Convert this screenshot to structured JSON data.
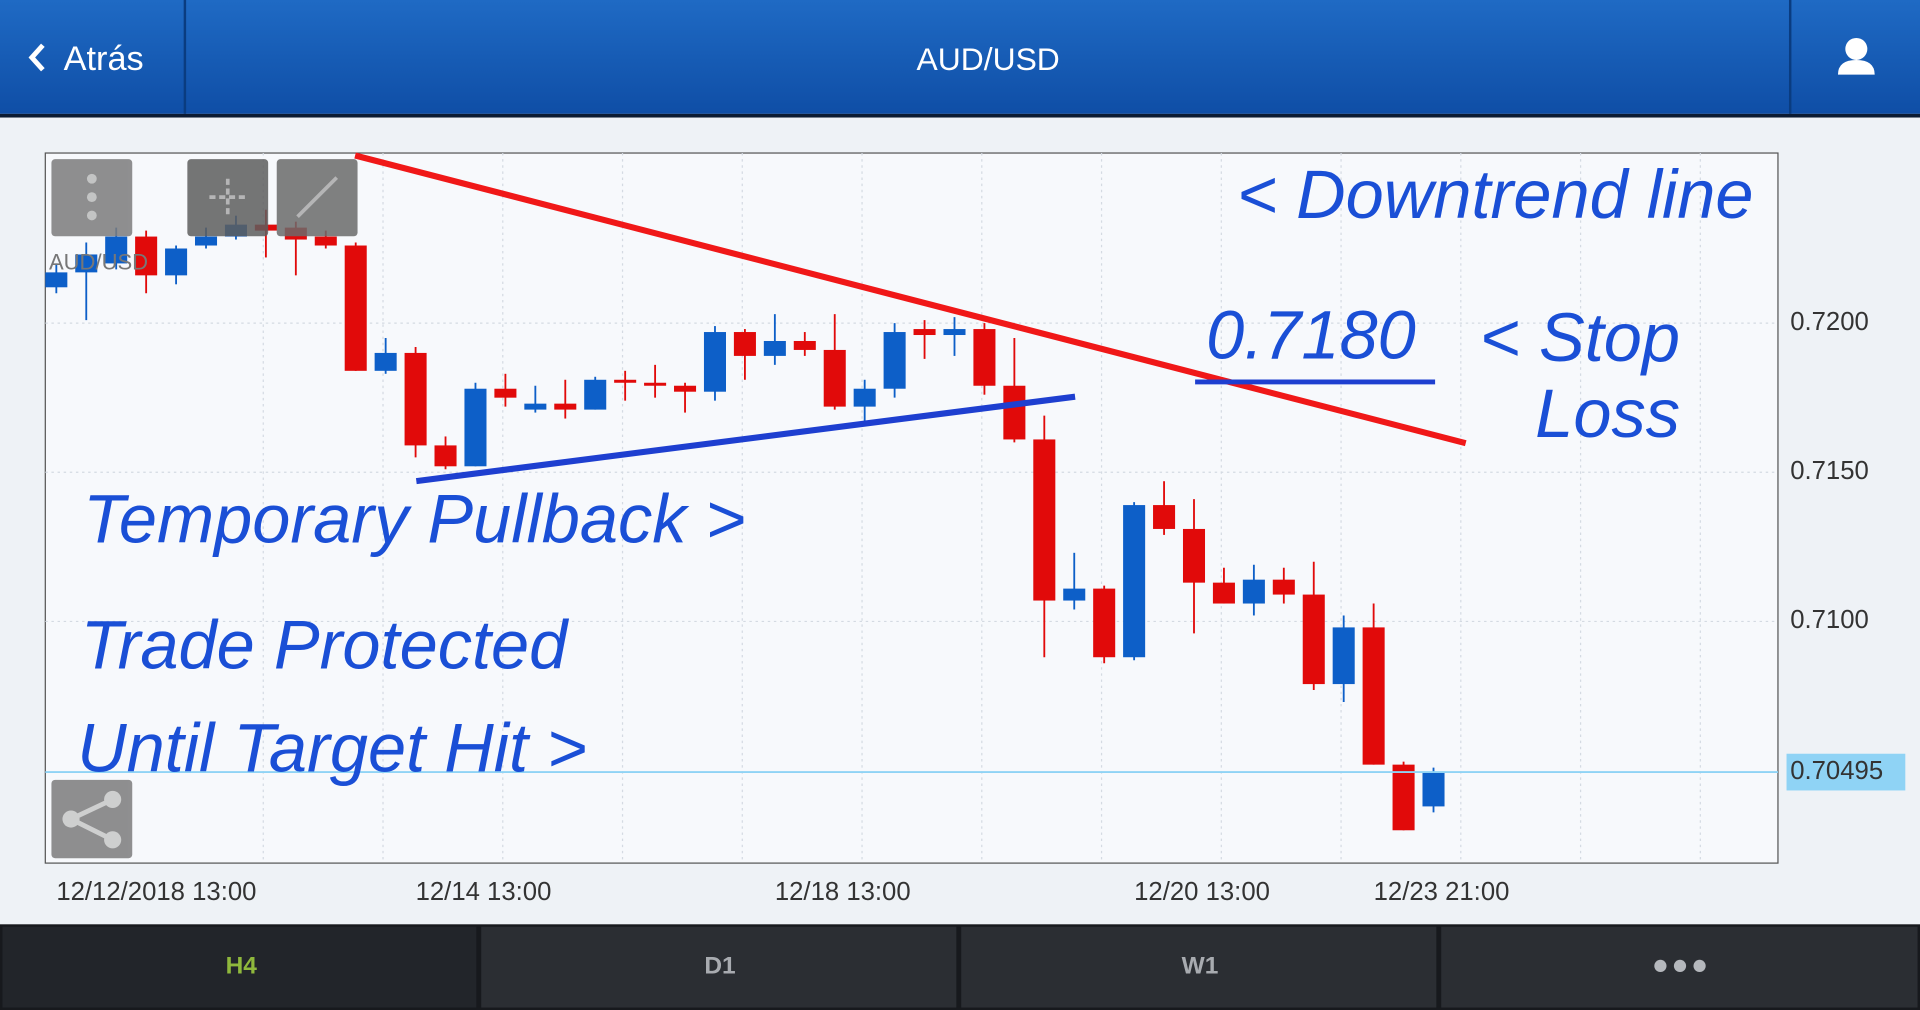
{
  "header": {
    "back": "Atrás",
    "title": "AUD/USD"
  },
  "chart_data": {
    "type": "candlestick",
    "symbol_label": "AUD/USD",
    "categories": [
      "12/12/2018 13:00",
      null,
      null,
      null,
      null,
      null,
      null,
      null,
      null,
      null,
      null,
      null,
      "12/14 13:00",
      null,
      null,
      null,
      null,
      null,
      null,
      null,
      null,
      null,
      null,
      null,
      "12/18 13:00",
      null,
      null,
      null,
      null,
      null,
      null,
      null,
      null,
      null,
      null,
      null,
      "12/20 13:00",
      null,
      null,
      null,
      null,
      null,
      null,
      null,
      "12/23 21:00",
      null,
      null
    ],
    "open": [
      0.7212,
      0.7217,
      0.722,
      0.7229,
      0.7216,
      0.7226,
      0.7229,
      0.7233,
      0.7232,
      0.7229,
      0.7226,
      0.7184,
      0.719,
      0.7159,
      0.7152,
      0.7178,
      0.7171,
      0.7173,
      0.7171,
      0.7181,
      0.718,
      0.7179,
      0.7177,
      0.7197,
      0.7189,
      0.7194,
      0.7191,
      0.7172,
      0.7178,
      0.7198,
      0.7196,
      0.7198,
      0.7179,
      0.7161,
      0.7107,
      0.7111,
      0.7088,
      0.7139,
      0.7131,
      0.7113,
      0.7106,
      0.7114,
      0.7109,
      0.7079,
      0.7098,
      0.7052,
      0.7038
    ],
    "high": [
      0.722,
      0.7227,
      0.7232,
      0.7231,
      0.7226,
      0.7232,
      0.7236,
      0.7238,
      0.7234,
      0.7231,
      0.7227,
      0.7195,
      0.7192,
      0.7162,
      0.718,
      0.7183,
      0.7179,
      0.7181,
      0.7182,
      0.7184,
      0.7186,
      0.718,
      0.7199,
      0.7198,
      0.7203,
      0.7197,
      0.7203,
      0.7181,
      0.72,
      0.7201,
      0.7202,
      0.72,
      0.7195,
      0.7169,
      0.7123,
      0.7112,
      0.714,
      0.7147,
      0.7141,
      0.7118,
      0.7119,
      0.7118,
      0.712,
      0.7102,
      0.7106,
      0.7053,
      0.7051
    ],
    "low": [
      0.721,
      0.7201,
      0.7218,
      0.721,
      0.7213,
      0.7225,
      0.7228,
      0.7222,
      0.7216,
      0.7225,
      0.7184,
      0.7183,
      0.7155,
      0.7151,
      0.7152,
      0.7172,
      0.717,
      0.7168,
      0.7171,
      0.7174,
      0.7175,
      0.717,
      0.7174,
      0.7181,
      0.7186,
      0.7189,
      0.7171,
      0.7166,
      0.7175,
      0.7188,
      0.7189,
      0.7176,
      0.716,
      0.7088,
      0.7104,
      0.7086,
      0.7087,
      0.7129,
      0.7096,
      0.7106,
      0.7102,
      0.7106,
      0.7077,
      0.7073,
      0.7052,
      0.703,
      0.7036
    ],
    "close": [
      0.7217,
      0.7223,
      0.7229,
      0.7216,
      0.7225,
      0.7229,
      0.7233,
      0.7231,
      0.7228,
      0.7226,
      0.7184,
      0.719,
      0.7159,
      0.7152,
      0.7178,
      0.7175,
      0.7173,
      0.7171,
      0.7181,
      0.718,
      0.7179,
      0.7177,
      0.7197,
      0.7189,
      0.7194,
      0.7191,
      0.7172,
      0.7178,
      0.7197,
      0.7196,
      0.7198,
      0.7179,
      0.7161,
      0.7107,
      0.7111,
      0.7088,
      0.7139,
      0.7131,
      0.7113,
      0.7106,
      0.7114,
      0.7109,
      0.7079,
      0.7098,
      0.7052,
      0.703,
      0.70495
    ],
    "up_color": "#0d5fc8",
    "down_color": "#e10a0a",
    "ylim": [
      0.7019,
      0.7257
    ],
    "yticks": [
      {
        "value": 0.71,
        "label": "0.7100"
      },
      {
        "value": 0.715,
        "label": "0.7150"
      },
      {
        "value": 0.72,
        "label": "0.7200"
      }
    ],
    "grid": true,
    "last_price": 0.70495,
    "last_price_color": "#8fd3f5",
    "annotations": [
      "< Downtrend line",
      "0.7180",
      "< Stop",
      "Loss",
      "Temporary  Pullback >",
      "Trade Protected",
      "Until Target Hit >"
    ]
  },
  "tabs": [
    "H4",
    "D1",
    "W1"
  ]
}
